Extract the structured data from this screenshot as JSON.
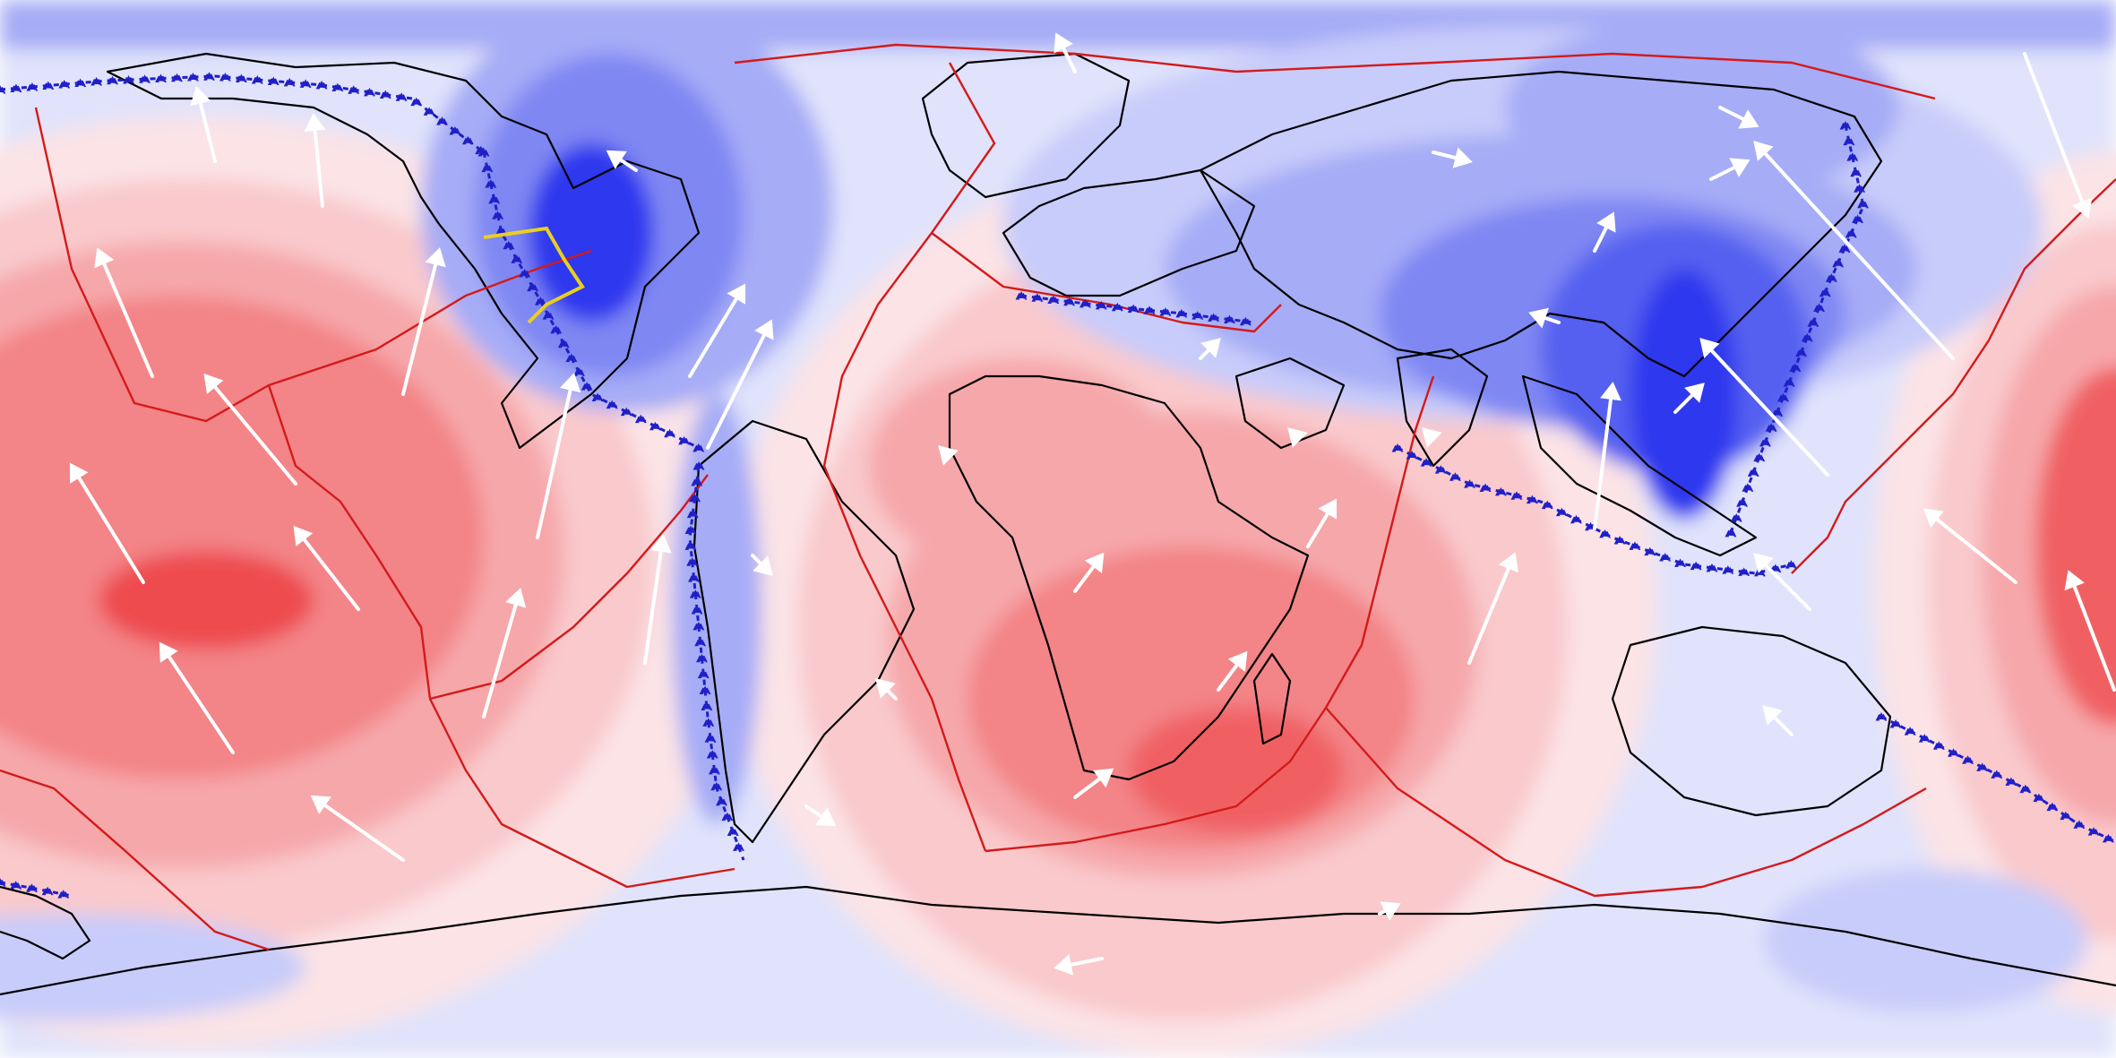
{
  "map": {
    "projection": "equirectangular",
    "text_labels": [],
    "colors": {
      "background_blue": "#e0e3fb",
      "blue_1": "#c8ccfa",
      "blue_2": "#a6acf6",
      "blue_3": "#7f87f3",
      "blue_4": "#5560f0",
      "blue_5": "#2d37ee",
      "pink_1": "#fbe3e6",
      "pink_2": "#f9c9cc",
      "red_1": "#f6a7aa",
      "red_2": "#f38487",
      "red_3": "#f06063",
      "red_4": "#ee4c50",
      "coastline": "#000000",
      "plate_boundary": "#d41a1a",
      "subduction_zone": "#2020c8",
      "ridge_segment": "#e8d020",
      "velocity_vector": "#ffffff"
    },
    "layers": [
      "dynamic-topography-field",
      "coastlines",
      "plate-boundaries",
      "subduction-zones",
      "plate-velocity-vectors"
    ]
  }
}
